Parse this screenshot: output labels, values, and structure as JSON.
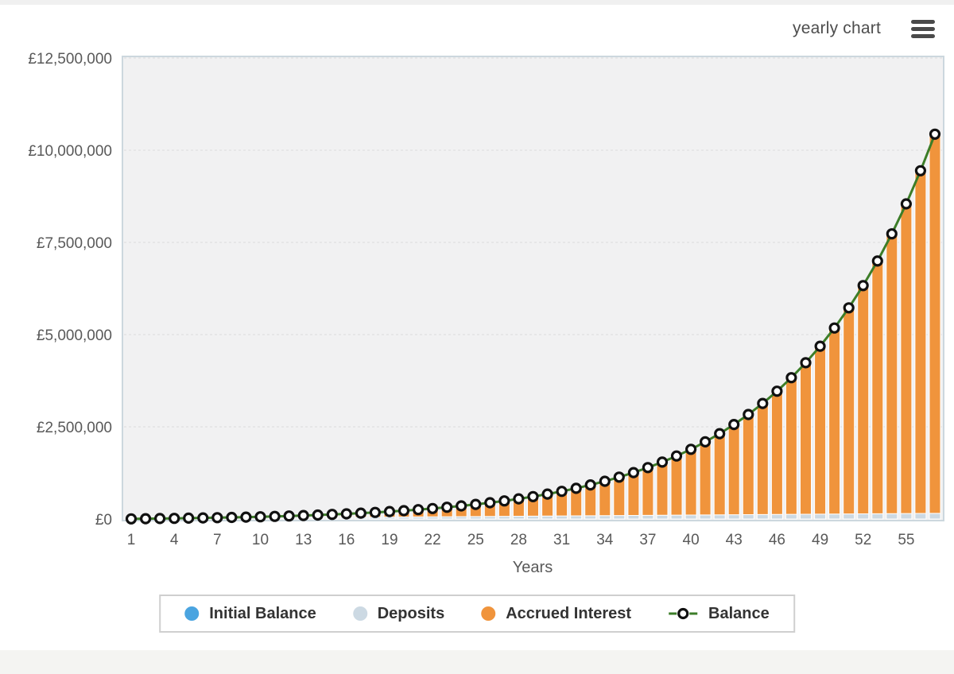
{
  "page": {
    "background": "#ffffff",
    "top_strip_color": "#f0f0f0",
    "bottom_strip_color": "#f4f4f2"
  },
  "header": {
    "title": "yearly chart",
    "title_color": "#4d4d4d",
    "menu_icon": "hamburger-icon",
    "menu_icon_color": "#4a4a4a"
  },
  "chart_data": {
    "type": "bar",
    "subtype": "stacked-columns-with-balance-line",
    "xlabel": "Years",
    "ylabel": "",
    "currency": "£",
    "years": 57,
    "x_tick_years": [
      1,
      4,
      7,
      10,
      13,
      16,
      19,
      22,
      25,
      28,
      31,
      34,
      37,
      40,
      43,
      46,
      49,
      52,
      55
    ],
    "ylim": [
      0,
      12500000
    ],
    "y_ticks": [
      {
        "value": 0,
        "label": "£0"
      },
      {
        "value": 2500000,
        "label": "£2,500,000"
      },
      {
        "value": 5000000,
        "label": "£5,000,000"
      },
      {
        "value": 7500000,
        "label": "£7,500,000"
      },
      {
        "value": 10000000,
        "label": "£10,000,000"
      },
      {
        "value": 12500000,
        "label": "£12,500,000"
      }
    ],
    "grid": "dashed-horizontal",
    "grid_color": "#dcdcdc",
    "plot_bg": "#f1f1f2",
    "plot_border": "#ccd7de",
    "legend_position": "bottom",
    "series": [
      {
        "name": "Initial Balance",
        "type": "bar",
        "color": "#4aa4e0",
        "constant_value": 0
      },
      {
        "name": "Deposits",
        "type": "bar",
        "color": "#ccd9e3",
        "values": [
          2700,
          5400,
          8100,
          10800,
          13500,
          16200,
          18900,
          21600,
          24300,
          27000,
          29700,
          32400,
          35100,
          37800,
          40500,
          43200,
          45900,
          48600,
          51300,
          54000,
          56700,
          59400,
          62100,
          64800,
          67500,
          70200,
          72900,
          75600,
          78300,
          81000,
          83700,
          86400,
          89100,
          91800,
          94500,
          97200,
          99900,
          102600,
          105300,
          108000,
          110700,
          113400,
          116100,
          118800,
          121500,
          124200,
          126900,
          129600,
          132300,
          135000,
          137700,
          140400,
          143100,
          145800,
          148500,
          151200,
          153900
        ]
      },
      {
        "name": "Accrued Interest",
        "type": "bar",
        "color": "#f0943c",
        "values": [
          1100,
          2500,
          4400,
          6800,
          9700,
          13100,
          17300,
          22100,
          27800,
          34300,
          41700,
          50300,
          60000,
          71000,
          83500,
          97500,
          113300,
          131000,
          150900,
          173100,
          198000,
          225700,
          256600,
          291000,
          329300,
          371900,
          419300,
          471900,
          530200,
          595000,
          666800,
          746500,
          834700,
          932500,
          1040800,
          1160800,
          1293500,
          1440500,
          1603100,
          1783000,
          1982100,
          2202200,
          2445800,
          2715000,
          3012800,
          3342000,
          3706000,
          4108400,
          4553100,
          5044800,
          5588200,
          6188800,
          6852500,
          7586000,
          8396700,
          9292400,
          10282300
        ]
      },
      {
        "name": "Balance",
        "type": "line",
        "color": "#3c7d28",
        "marker": "black-ring",
        "marker_color": "#111111",
        "values": [
          3800,
          7900,
          12500,
          17600,
          23200,
          29300,
          36200,
          43700,
          52100,
          61300,
          71400,
          82700,
          95100,
          108800,
          124000,
          140700,
          159200,
          179600,
          202200,
          227100,
          254700,
          285100,
          318700,
          355800,
          396800,
          442100,
          492200,
          547500,
          608500,
          676000,
          750500,
          832900,
          923800,
          1024300,
          1135300,
          1258000,
          1393400,
          1543100,
          1708400,
          1891000,
          2092800,
          2315600,
          2561900,
          2833800,
          3134300,
          3466200,
          3832900,
          4238000,
          4685400,
          5179800,
          5725900,
          6329200,
          6995600,
          7731800,
          8545200,
          9443600,
          10436200
        ]
      }
    ]
  }
}
